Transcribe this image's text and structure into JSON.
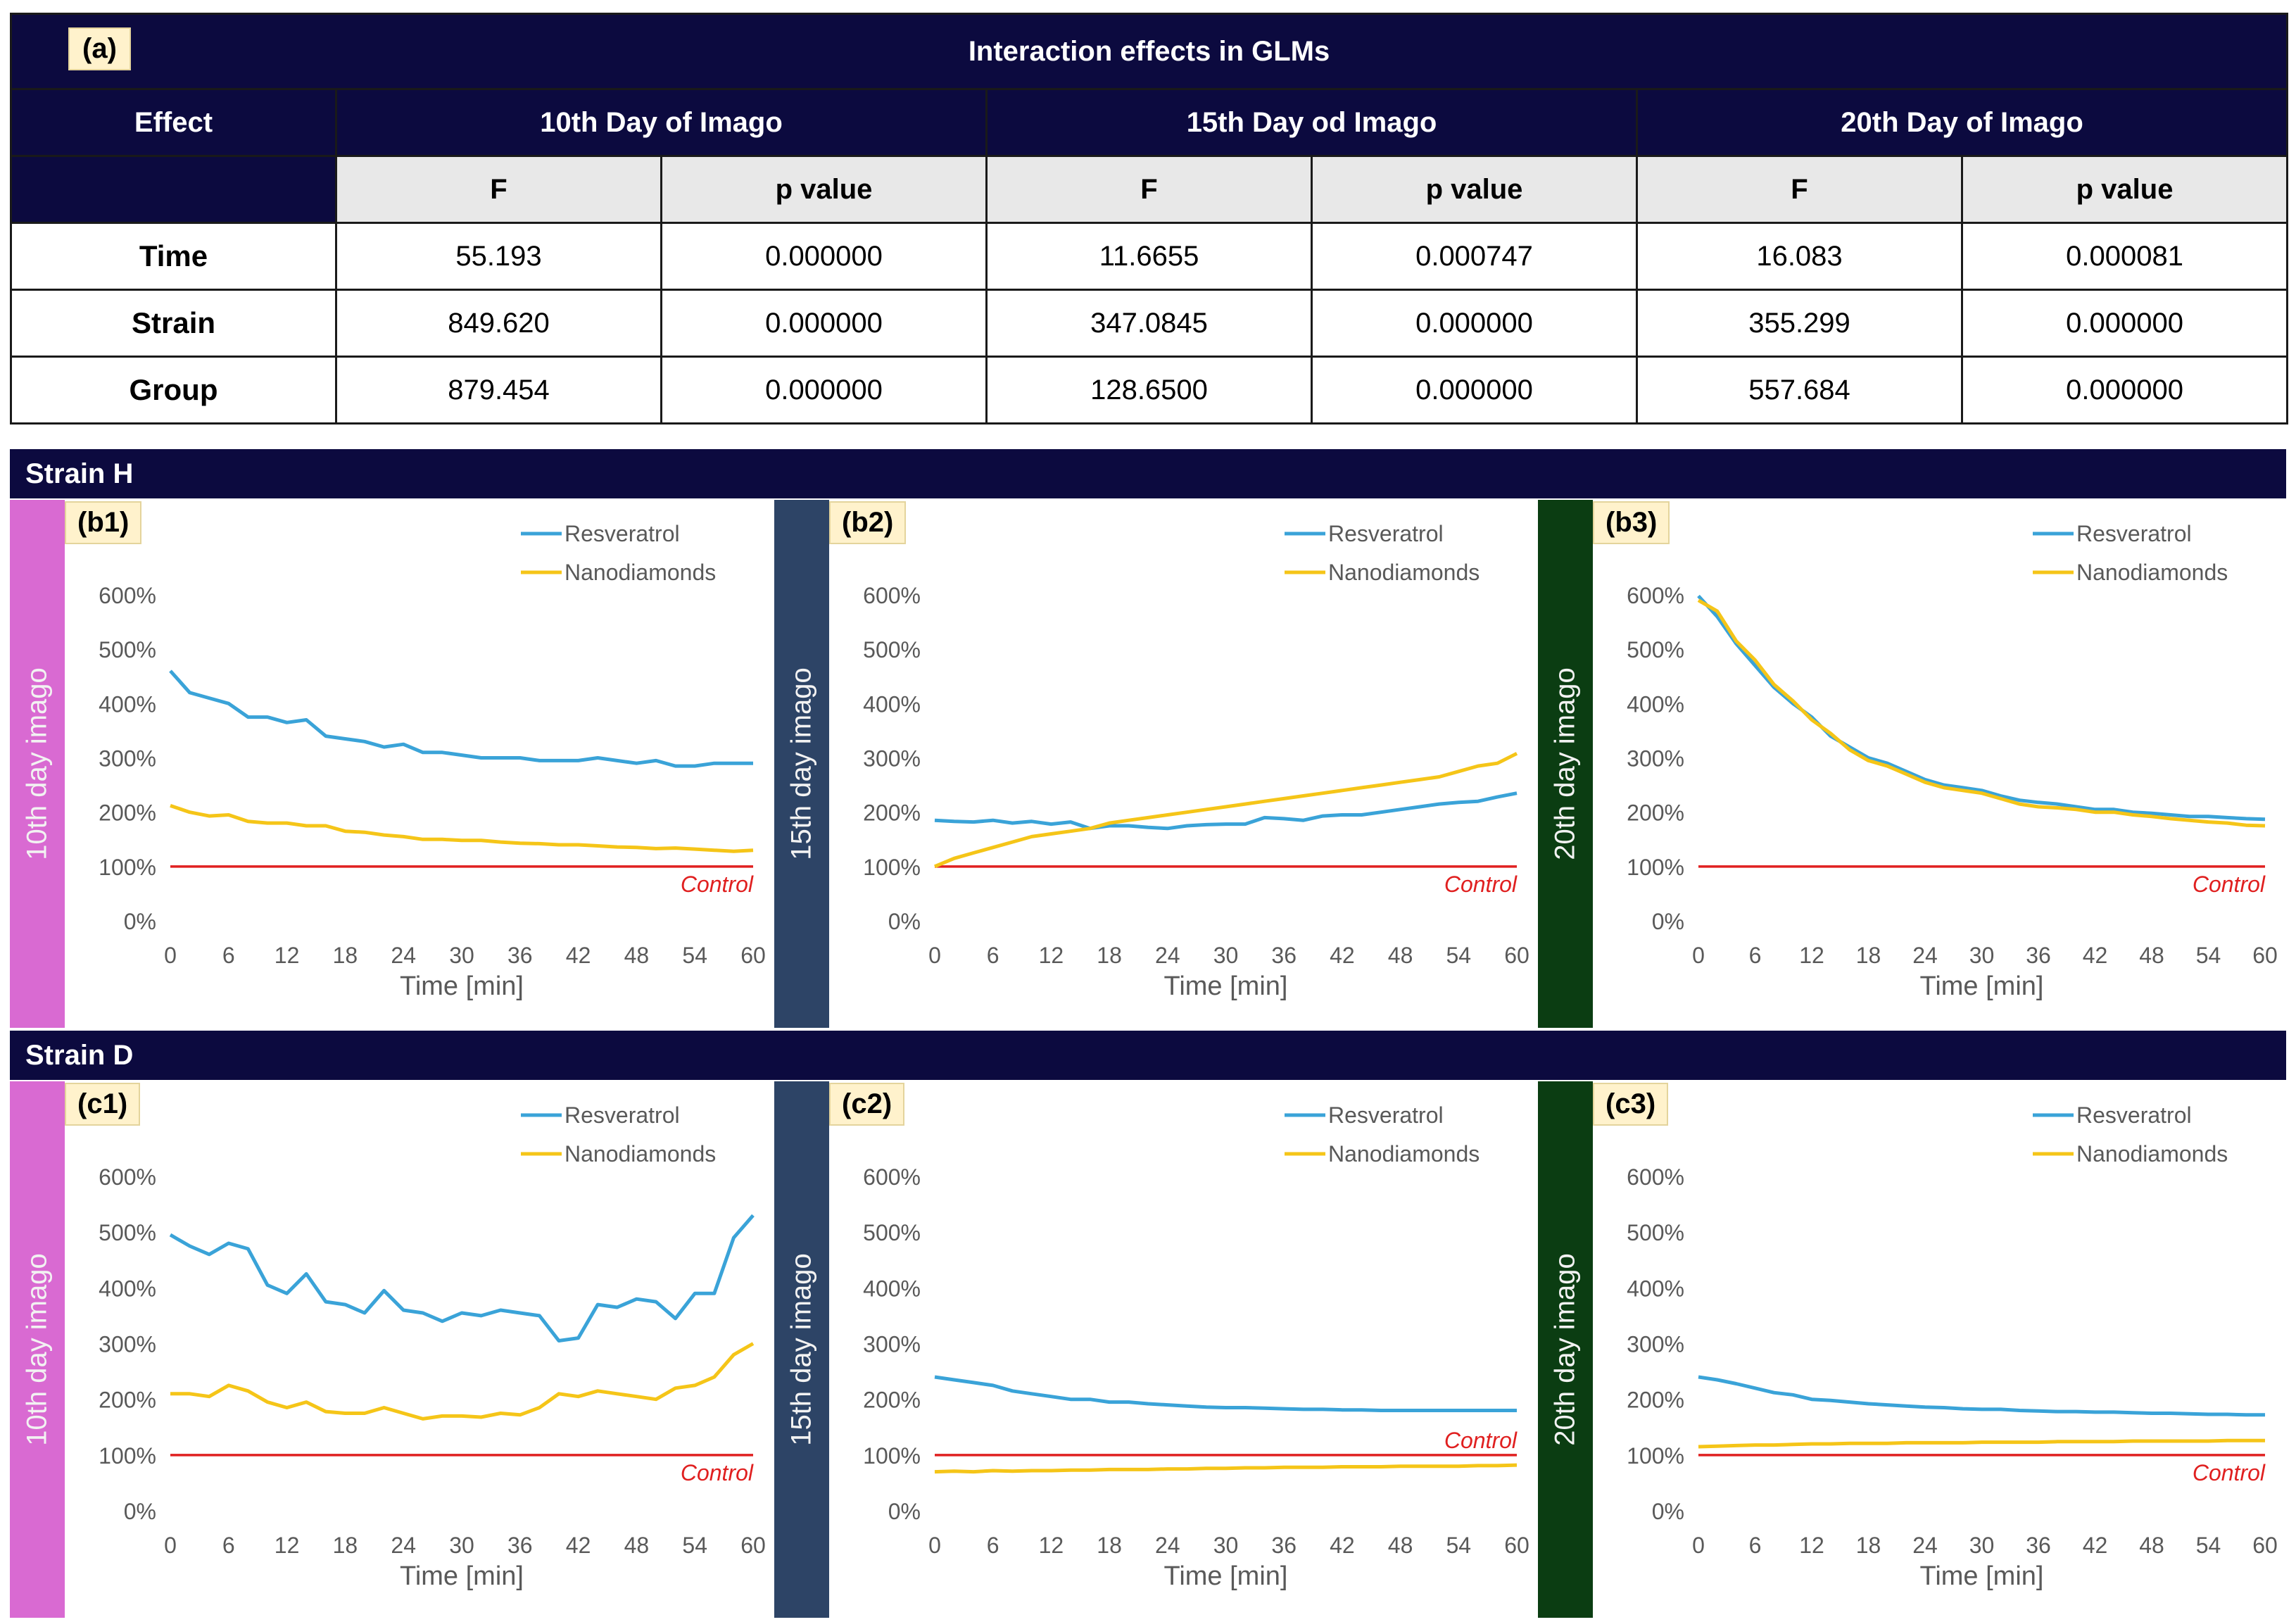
{
  "table": {
    "tag": "(a)",
    "title": "Interaction effects in GLMs",
    "effect_header": "Effect",
    "days": [
      "10th Day of Imago",
      "15th Day od Imago",
      "20th Day of Imago"
    ],
    "sub_f": "F",
    "sub_p": "p value",
    "rows": [
      {
        "effect": "Time",
        "values": [
          "55.193",
          "0.000000",
          "11.6655",
          "0.000747",
          "16.083",
          "0.000081"
        ]
      },
      {
        "effect": "Strain",
        "values": [
          "849.620",
          "0.000000",
          "347.0845",
          "0.000000",
          "355.299",
          "0.000000"
        ]
      },
      {
        "effect": "Group",
        "values": [
          "879.454",
          "0.000000",
          "128.6500",
          "0.000000",
          "557.684",
          "0.000000"
        ]
      }
    ]
  },
  "strains": [
    {
      "label": "Strain H"
    },
    {
      "label": "Strain D"
    }
  ],
  "side_labels": [
    "10th day imago",
    "15th day imago",
    "20th day imago"
  ],
  "colors": {
    "navy": "#0c0a3f",
    "resveratrol": "#3aa3d8",
    "nanodiamonds": "#f5c518",
    "control": "#e02020",
    "side10": "#d96ad2",
    "side15": "#2d4466",
    "side20": "#0b3d12"
  },
  "chart_data": [
    {
      "id": "b1",
      "tag": "(b1)",
      "type": "line",
      "xlabel": "Time [min]",
      "ylabel": "",
      "xlim": [
        0,
        60
      ],
      "ylim": [
        0,
        600
      ],
      "xticks": [
        0,
        6,
        12,
        18,
        24,
        30,
        36,
        42,
        48,
        54,
        60
      ],
      "yticks": [
        "0%",
        "100%",
        "200%",
        "300%",
        "400%",
        "500%",
        "600%"
      ],
      "control_label": "Control",
      "control_value": 100,
      "control_label_pos": "below",
      "x": [
        0,
        2,
        4,
        6,
        8,
        10,
        12,
        14,
        16,
        18,
        20,
        22,
        24,
        26,
        28,
        30,
        32,
        34,
        36,
        38,
        40,
        42,
        44,
        46,
        48,
        50,
        52,
        54,
        56,
        58,
        60
      ],
      "series": [
        {
          "name": "Resveratrol",
          "values": [
            460,
            420,
            410,
            400,
            375,
            375,
            365,
            370,
            340,
            335,
            330,
            320,
            325,
            310,
            310,
            305,
            300,
            300,
            300,
            295,
            295,
            295,
            300,
            295,
            290,
            295,
            285,
            285,
            290,
            290,
            290
          ]
        },
        {
          "name": "Nanodiamonds",
          "values": [
            212,
            200,
            193,
            195,
            183,
            180,
            180,
            175,
            175,
            165,
            163,
            158,
            155,
            150,
            150,
            148,
            148,
            145,
            143,
            142,
            140,
            140,
            138,
            136,
            135,
            133,
            134,
            132,
            130,
            128,
            130
          ]
        }
      ]
    },
    {
      "id": "b2",
      "tag": "(b2)",
      "type": "line",
      "xlabel": "Time [min]",
      "ylabel": "",
      "xlim": [
        0,
        60
      ],
      "ylim": [
        0,
        600
      ],
      "xticks": [
        0,
        6,
        12,
        18,
        24,
        30,
        36,
        42,
        48,
        54,
        60
      ],
      "yticks": [
        "0%",
        "100%",
        "200%",
        "300%",
        "400%",
        "500%",
        "600%"
      ],
      "control_label": "Control",
      "control_value": 100,
      "control_label_pos": "below",
      "x": [
        0,
        2,
        4,
        6,
        8,
        10,
        12,
        14,
        16,
        18,
        20,
        22,
        24,
        26,
        28,
        30,
        32,
        34,
        36,
        38,
        40,
        42,
        44,
        46,
        48,
        50,
        52,
        54,
        56,
        58,
        60
      ],
      "series": [
        {
          "name": "Resveratrol",
          "values": [
            185,
            183,
            182,
            185,
            180,
            183,
            178,
            182,
            170,
            175,
            175,
            172,
            170,
            175,
            177,
            178,
            178,
            190,
            188,
            185,
            193,
            195,
            195,
            200,
            205,
            210,
            215,
            218,
            220,
            228,
            235
          ]
        },
        {
          "name": "Nanodiamonds",
          "values": [
            100,
            115,
            125,
            135,
            145,
            155,
            160,
            165,
            170,
            180,
            185,
            190,
            195,
            200,
            205,
            210,
            215,
            220,
            225,
            230,
            235,
            240,
            245,
            250,
            255,
            260,
            265,
            275,
            285,
            290,
            308
          ]
        }
      ]
    },
    {
      "id": "b3",
      "tag": "(b3)",
      "type": "line",
      "xlabel": "Time [min]",
      "ylabel": "",
      "xlim": [
        0,
        60
      ],
      "ylim": [
        0,
        600
      ],
      "xticks": [
        0,
        6,
        12,
        18,
        24,
        30,
        36,
        42,
        48,
        54,
        60
      ],
      "yticks": [
        "0%",
        "100%",
        "200%",
        "300%",
        "400%",
        "500%",
        "600%"
      ],
      "control_label": "Control",
      "control_value": 100,
      "control_label_pos": "below",
      "x": [
        0,
        2,
        4,
        6,
        8,
        10,
        12,
        14,
        16,
        18,
        20,
        22,
        24,
        26,
        28,
        30,
        32,
        34,
        36,
        38,
        40,
        42,
        44,
        46,
        48,
        50,
        52,
        54,
        56,
        58,
        60
      ],
      "series": [
        {
          "name": "Resveratrol",
          "values": [
            598,
            560,
            510,
            470,
            430,
            400,
            375,
            340,
            320,
            300,
            290,
            275,
            260,
            250,
            245,
            240,
            230,
            222,
            218,
            215,
            210,
            205,
            205,
            200,
            198,
            195,
            192,
            192,
            190,
            188,
            187
          ]
        },
        {
          "name": "Nanodiamonds",
          "values": [
            590,
            570,
            515,
            480,
            435,
            405,
            370,
            345,
            315,
            295,
            285,
            270,
            255,
            245,
            240,
            235,
            225,
            215,
            210,
            208,
            205,
            200,
            200,
            195,
            192,
            188,
            185,
            182,
            180,
            176,
            175
          ]
        }
      ]
    },
    {
      "id": "c1",
      "tag": "(c1)",
      "type": "line",
      "xlabel": "Time [min]",
      "ylabel": "",
      "xlim": [
        0,
        60
      ],
      "ylim": [
        0,
        600
      ],
      "xticks": [
        0,
        6,
        12,
        18,
        24,
        30,
        36,
        42,
        48,
        54,
        60
      ],
      "yticks": [
        "0%",
        "100%",
        "200%",
        "300%",
        "400%",
        "500%",
        "600%"
      ],
      "control_label": "Control",
      "control_value": 100,
      "control_label_pos": "below",
      "x": [
        0,
        2,
        4,
        6,
        8,
        10,
        12,
        14,
        16,
        18,
        20,
        22,
        24,
        26,
        28,
        30,
        32,
        34,
        36,
        38,
        40,
        42,
        44,
        46,
        48,
        50,
        52,
        54,
        56,
        58,
        60
      ],
      "series": [
        {
          "name": "Resveratrol",
          "values": [
            495,
            475,
            460,
            480,
            470,
            405,
            390,
            425,
            375,
            370,
            355,
            395,
            360,
            355,
            340,
            355,
            350,
            360,
            355,
            350,
            305,
            310,
            370,
            365,
            380,
            375,
            345,
            390,
            390,
            490,
            530
          ]
        },
        {
          "name": "Nanodiamonds",
          "values": [
            210,
            210,
            205,
            225,
            215,
            195,
            185,
            195,
            178,
            175,
            175,
            185,
            175,
            165,
            170,
            170,
            168,
            175,
            172,
            185,
            210,
            205,
            215,
            210,
            205,
            200,
            220,
            225,
            240,
            280,
            300
          ]
        }
      ]
    },
    {
      "id": "c2",
      "tag": "(c2)",
      "type": "line",
      "xlabel": "Time [min]",
      "ylabel": "",
      "xlim": [
        0,
        60
      ],
      "ylim": [
        0,
        600
      ],
      "xticks": [
        0,
        6,
        12,
        18,
        24,
        30,
        36,
        42,
        48,
        54,
        60
      ],
      "yticks": [
        "0%",
        "100%",
        "200%",
        "300%",
        "400%",
        "500%",
        "600%"
      ],
      "control_label": "Control",
      "control_value": 100,
      "control_label_pos": "above",
      "x": [
        0,
        2,
        4,
        6,
        8,
        10,
        12,
        14,
        16,
        18,
        20,
        22,
        24,
        26,
        28,
        30,
        32,
        34,
        36,
        38,
        40,
        42,
        44,
        46,
        48,
        50,
        52,
        54,
        56,
        58,
        60
      ],
      "series": [
        {
          "name": "Resveratrol",
          "values": [
            240,
            235,
            230,
            225,
            215,
            210,
            205,
            200,
            200,
            195,
            195,
            192,
            190,
            188,
            186,
            185,
            185,
            184,
            183,
            182,
            182,
            181,
            181,
            180,
            180,
            180,
            180,
            180,
            180,
            180,
            180
          ]
        },
        {
          "name": "Nanodiamonds",
          "values": [
            70,
            71,
            70,
            72,
            71,
            72,
            72,
            73,
            73,
            74,
            74,
            74,
            75,
            75,
            76,
            76,
            77,
            77,
            78,
            78,
            78,
            79,
            79,
            79,
            80,
            80,
            80,
            80,
            81,
            81,
            82
          ]
        }
      ]
    },
    {
      "id": "c3",
      "tag": "(c3)",
      "type": "line",
      "xlabel": "Time [min]",
      "ylabel": "",
      "xlim": [
        0,
        60
      ],
      "ylim": [
        0,
        600
      ],
      "xticks": [
        0,
        6,
        12,
        18,
        24,
        30,
        36,
        42,
        48,
        54,
        60
      ],
      "yticks": [
        "0%",
        "100%",
        "200%",
        "300%",
        "400%",
        "500%",
        "600%"
      ],
      "control_label": "Control",
      "control_value": 100,
      "control_label_pos": "below",
      "x": [
        0,
        2,
        4,
        6,
        8,
        10,
        12,
        14,
        16,
        18,
        20,
        22,
        24,
        26,
        28,
        30,
        32,
        34,
        36,
        38,
        40,
        42,
        44,
        46,
        48,
        50,
        52,
        54,
        56,
        58,
        60
      ],
      "series": [
        {
          "name": "Resveratrol",
          "values": [
            240,
            235,
            228,
            220,
            212,
            208,
            200,
            198,
            195,
            192,
            190,
            188,
            186,
            185,
            183,
            182,
            182,
            180,
            179,
            178,
            178,
            177,
            177,
            176,
            175,
            175,
            174,
            173,
            173,
            172,
            172
          ]
        },
        {
          "name": "Nanodiamonds",
          "values": [
            115,
            116,
            117,
            118,
            118,
            119,
            120,
            120,
            121,
            121,
            121,
            122,
            122,
            122,
            122,
            123,
            123,
            123,
            123,
            124,
            124,
            124,
            124,
            125,
            125,
            125,
            125,
            125,
            126,
            126,
            126
          ]
        }
      ]
    }
  ]
}
